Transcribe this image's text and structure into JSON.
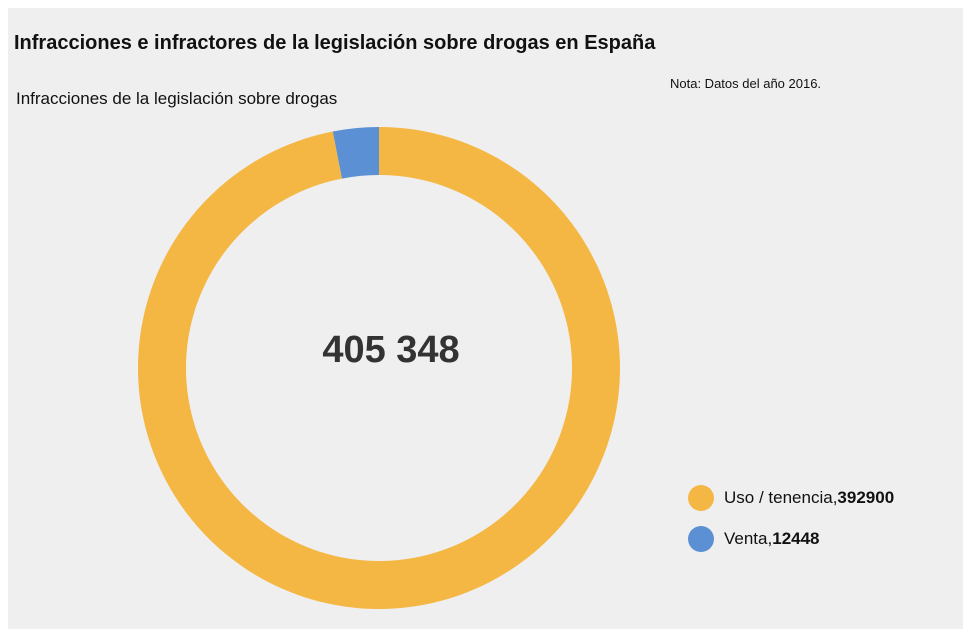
{
  "header": {
    "title": "Infracciones e infractores de la legislación sobre drogas en España",
    "note": "Nota: Datos del año 2016."
  },
  "chart_data": {
    "type": "pie",
    "variant": "donut",
    "title": "Infracciones de la legislación sobre drogas",
    "center_label": "405 348",
    "total": 405348,
    "categories": [
      "Uso / tenencia",
      "Venta"
    ],
    "values": [
      392900,
      12448
    ],
    "colors": [
      "#f5b744",
      "#5b90d4"
    ],
    "legend_placement": "bottom-right",
    "legend": [
      {
        "name": "Uso / tenencia",
        "sep": ", ",
        "value": "392900"
      },
      {
        "name": "Venta",
        "sep": ", ",
        "value": "12448"
      }
    ]
  }
}
